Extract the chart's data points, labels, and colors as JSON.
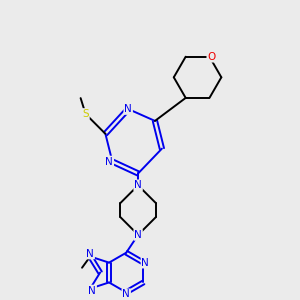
{
  "background_color": "#ebebeb",
  "atom_colors": {
    "C": "#000000",
    "N": "#0000ee",
    "O": "#ee0000",
    "S": "#cccc00"
  },
  "figsize": [
    3.0,
    3.0
  ],
  "dpi": 100,
  "line_width": 1.4,
  "font_size": 7.5
}
